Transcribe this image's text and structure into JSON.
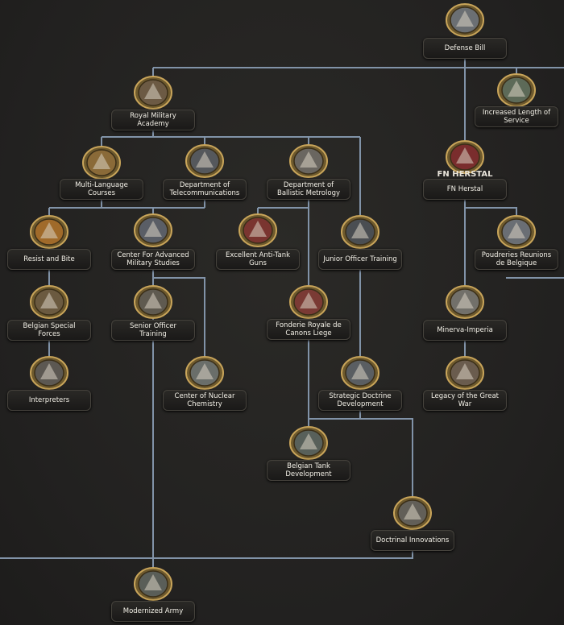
{
  "nodes": [
    {
      "label": "Defense Bill"
    },
    {
      "label": "Increased Length of Service"
    },
    {
      "label": "Royal Military Academy"
    },
    {
      "label": "Multi-Language Courses"
    },
    {
      "label": "Department of Telecommunications"
    },
    {
      "label": "Department of Ballistic Metrology"
    },
    {
      "label": "FN Herstal",
      "icon_text": "FN HERSTAL"
    },
    {
      "label": "Resist and Bite"
    },
    {
      "label": "Center For Advanced Military Studies"
    },
    {
      "label": "Excellent Anti-Tank Guns"
    },
    {
      "label": "Junior Officer Training"
    },
    {
      "label": "Poudreries Reunions de Belgique"
    },
    {
      "label": "Belgian Special Forces"
    },
    {
      "label": "Senior Officer Training"
    },
    {
      "label": "Fonderie Royale de Canons Liege"
    },
    {
      "label": "Minerva-Imperia"
    },
    {
      "label": "Interpreters"
    },
    {
      "label": "Center of Nuclear Chemistry"
    },
    {
      "label": "Strategic Doctrine Development"
    },
    {
      "label": "Legacy of the Great War"
    },
    {
      "label": "Belgian Tank Development"
    },
    {
      "label": "Doctrinal Innovations"
    },
    {
      "label": "Modernized Army"
    }
  ]
}
